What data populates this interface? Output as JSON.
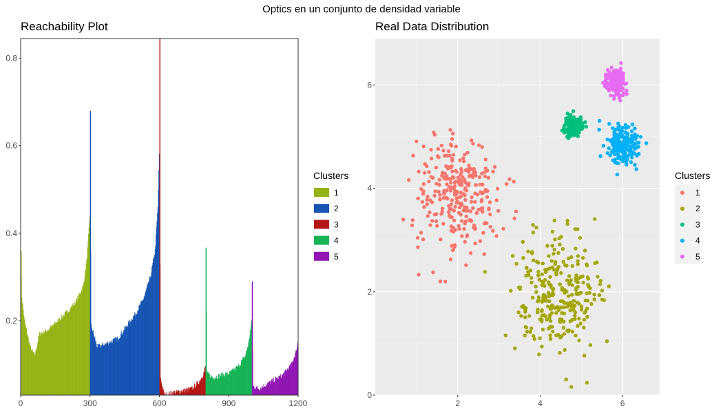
{
  "figure": {
    "suptitle": "Optics en un conjunto de densidad variable"
  },
  "chart_data": [
    {
      "type": "bar",
      "title": "Reachability Plot",
      "xlabel": "",
      "ylabel": "",
      "xlim": [
        0,
        1200
      ],
      "ylim": [
        0.03,
        0.845
      ],
      "x_ticks": [
        "0",
        "300",
        "600",
        "900",
        "1200"
      ],
      "y_ticks": [
        "0.2",
        "0.4",
        "0.6",
        "0.8"
      ],
      "grid": false,
      "legend": {
        "title": "Clusters",
        "position": "right",
        "entries": [
          {
            "label": "1",
            "color": "#94b415"
          },
          {
            "label": "2",
            "color": "#1654b4"
          },
          {
            "label": "3",
            "color": "#b41616"
          },
          {
            "label": "4",
            "color": "#16b456"
          },
          {
            "label": "5",
            "color": "#9116b4"
          }
        ]
      },
      "series": [
        {
          "name": "1",
          "x_range": [
            0,
            300
          ],
          "color": "#94b415",
          "profile": [
            [
              0,
              0.36
            ],
            [
              3,
              0.26
            ],
            [
              15,
              0.2
            ],
            [
              40,
              0.14
            ],
            [
              60,
              0.12
            ],
            [
              80,
              0.17
            ],
            [
              120,
              0.18
            ],
            [
              160,
              0.2
            ],
            [
              200,
              0.22
            ],
            [
              240,
              0.245
            ],
            [
              270,
              0.28
            ],
            [
              285,
              0.34
            ],
            [
              293,
              0.4
            ],
            [
              298,
              0.44
            ],
            [
              300,
              0.52
            ]
          ]
        },
        {
          "name": "2",
          "x_range": [
            300,
            600
          ],
          "color": "#1654b4",
          "profile": [
            [
              300,
              0.68
            ],
            [
              303,
              0.19
            ],
            [
              330,
              0.14
            ],
            [
              380,
              0.15
            ],
            [
              420,
              0.16
            ],
            [
              460,
              0.19
            ],
            [
              500,
              0.22
            ],
            [
              530,
              0.25
            ],
            [
              560,
              0.3
            ],
            [
              580,
              0.36
            ],
            [
              592,
              0.46
            ],
            [
              598,
              0.58
            ],
            [
              600,
              0.62
            ]
          ]
        },
        {
          "name": "3",
          "x_range": [
            600,
            800
          ],
          "color": "#b41616",
          "profile": [
            [
              600,
              0.85
            ],
            [
              603,
              0.07
            ],
            [
              620,
              0.03
            ],
            [
              650,
              0.035
            ],
            [
              700,
              0.04
            ],
            [
              740,
              0.045
            ],
            [
              770,
              0.06
            ],
            [
              790,
              0.08
            ],
            [
              800,
              0.1
            ]
          ]
        },
        {
          "name": "4",
          "x_range": [
            800,
            1000
          ],
          "color": "#16b456",
          "profile": [
            [
              800,
              0.365
            ],
            [
              804,
              0.08
            ],
            [
              830,
              0.07
            ],
            [
              860,
              0.075
            ],
            [
              900,
              0.08
            ],
            [
              940,
              0.095
            ],
            [
              970,
              0.12
            ],
            [
              985,
              0.15
            ],
            [
              995,
              0.19
            ],
            [
              1000,
              0.21
            ]
          ]
        },
        {
          "name": "5",
          "x_range": [
            1000,
            1200
          ],
          "color": "#9116b4",
          "profile": [
            [
              1000,
              0.29
            ],
            [
              1003,
              0.05
            ],
            [
              1030,
              0.045
            ],
            [
              1080,
              0.06
            ],
            [
              1130,
              0.075
            ],
            [
              1170,
              0.1
            ],
            [
              1190,
              0.13
            ],
            [
              1200,
              0.16
            ]
          ]
        }
      ]
    },
    {
      "type": "scatter",
      "title": "Real Data Distribution",
      "xlabel": "",
      "ylabel": "",
      "xlim": [
        0,
        6.9
      ],
      "ylim": [
        0,
        6.9
      ],
      "x_ticks": [
        2,
        4,
        6
      ],
      "y_ticks": [
        0,
        2,
        4,
        6
      ],
      "grid": true,
      "legend": {
        "title": "Clusters",
        "position": "right",
        "entries": [
          {
            "label": "1",
            "color": "#F8766D"
          },
          {
            "label": "2",
            "color": "#A3A500"
          },
          {
            "label": "3",
            "color": "#00BF7D"
          },
          {
            "label": "4",
            "color": "#00B0F6"
          },
          {
            "label": "5",
            "color": "#E76BF3"
          }
        ]
      },
      "series": [
        {
          "name": "1",
          "color": "#F8766D",
          "n": 300,
          "center": [
            2.0,
            3.9
          ],
          "spread": [
            0.5,
            0.55
          ]
        },
        {
          "name": "2",
          "color": "#A3A500",
          "n": 300,
          "center": [
            4.4,
            2.0
          ],
          "spread": [
            0.5,
            0.55
          ]
        },
        {
          "name": "3",
          "color": "#00BF7D",
          "n": 200,
          "center": [
            4.8,
            5.2
          ],
          "spread": [
            0.1,
            0.1
          ]
        },
        {
          "name": "4",
          "color": "#00B0F6",
          "n": 200,
          "center": [
            6.0,
            4.85
          ],
          "spread": [
            0.2,
            0.2
          ]
        },
        {
          "name": "5",
          "color": "#E76BF3",
          "n": 200,
          "center": [
            5.85,
            6.05
          ],
          "spread": [
            0.12,
            0.12
          ]
        }
      ]
    }
  ]
}
